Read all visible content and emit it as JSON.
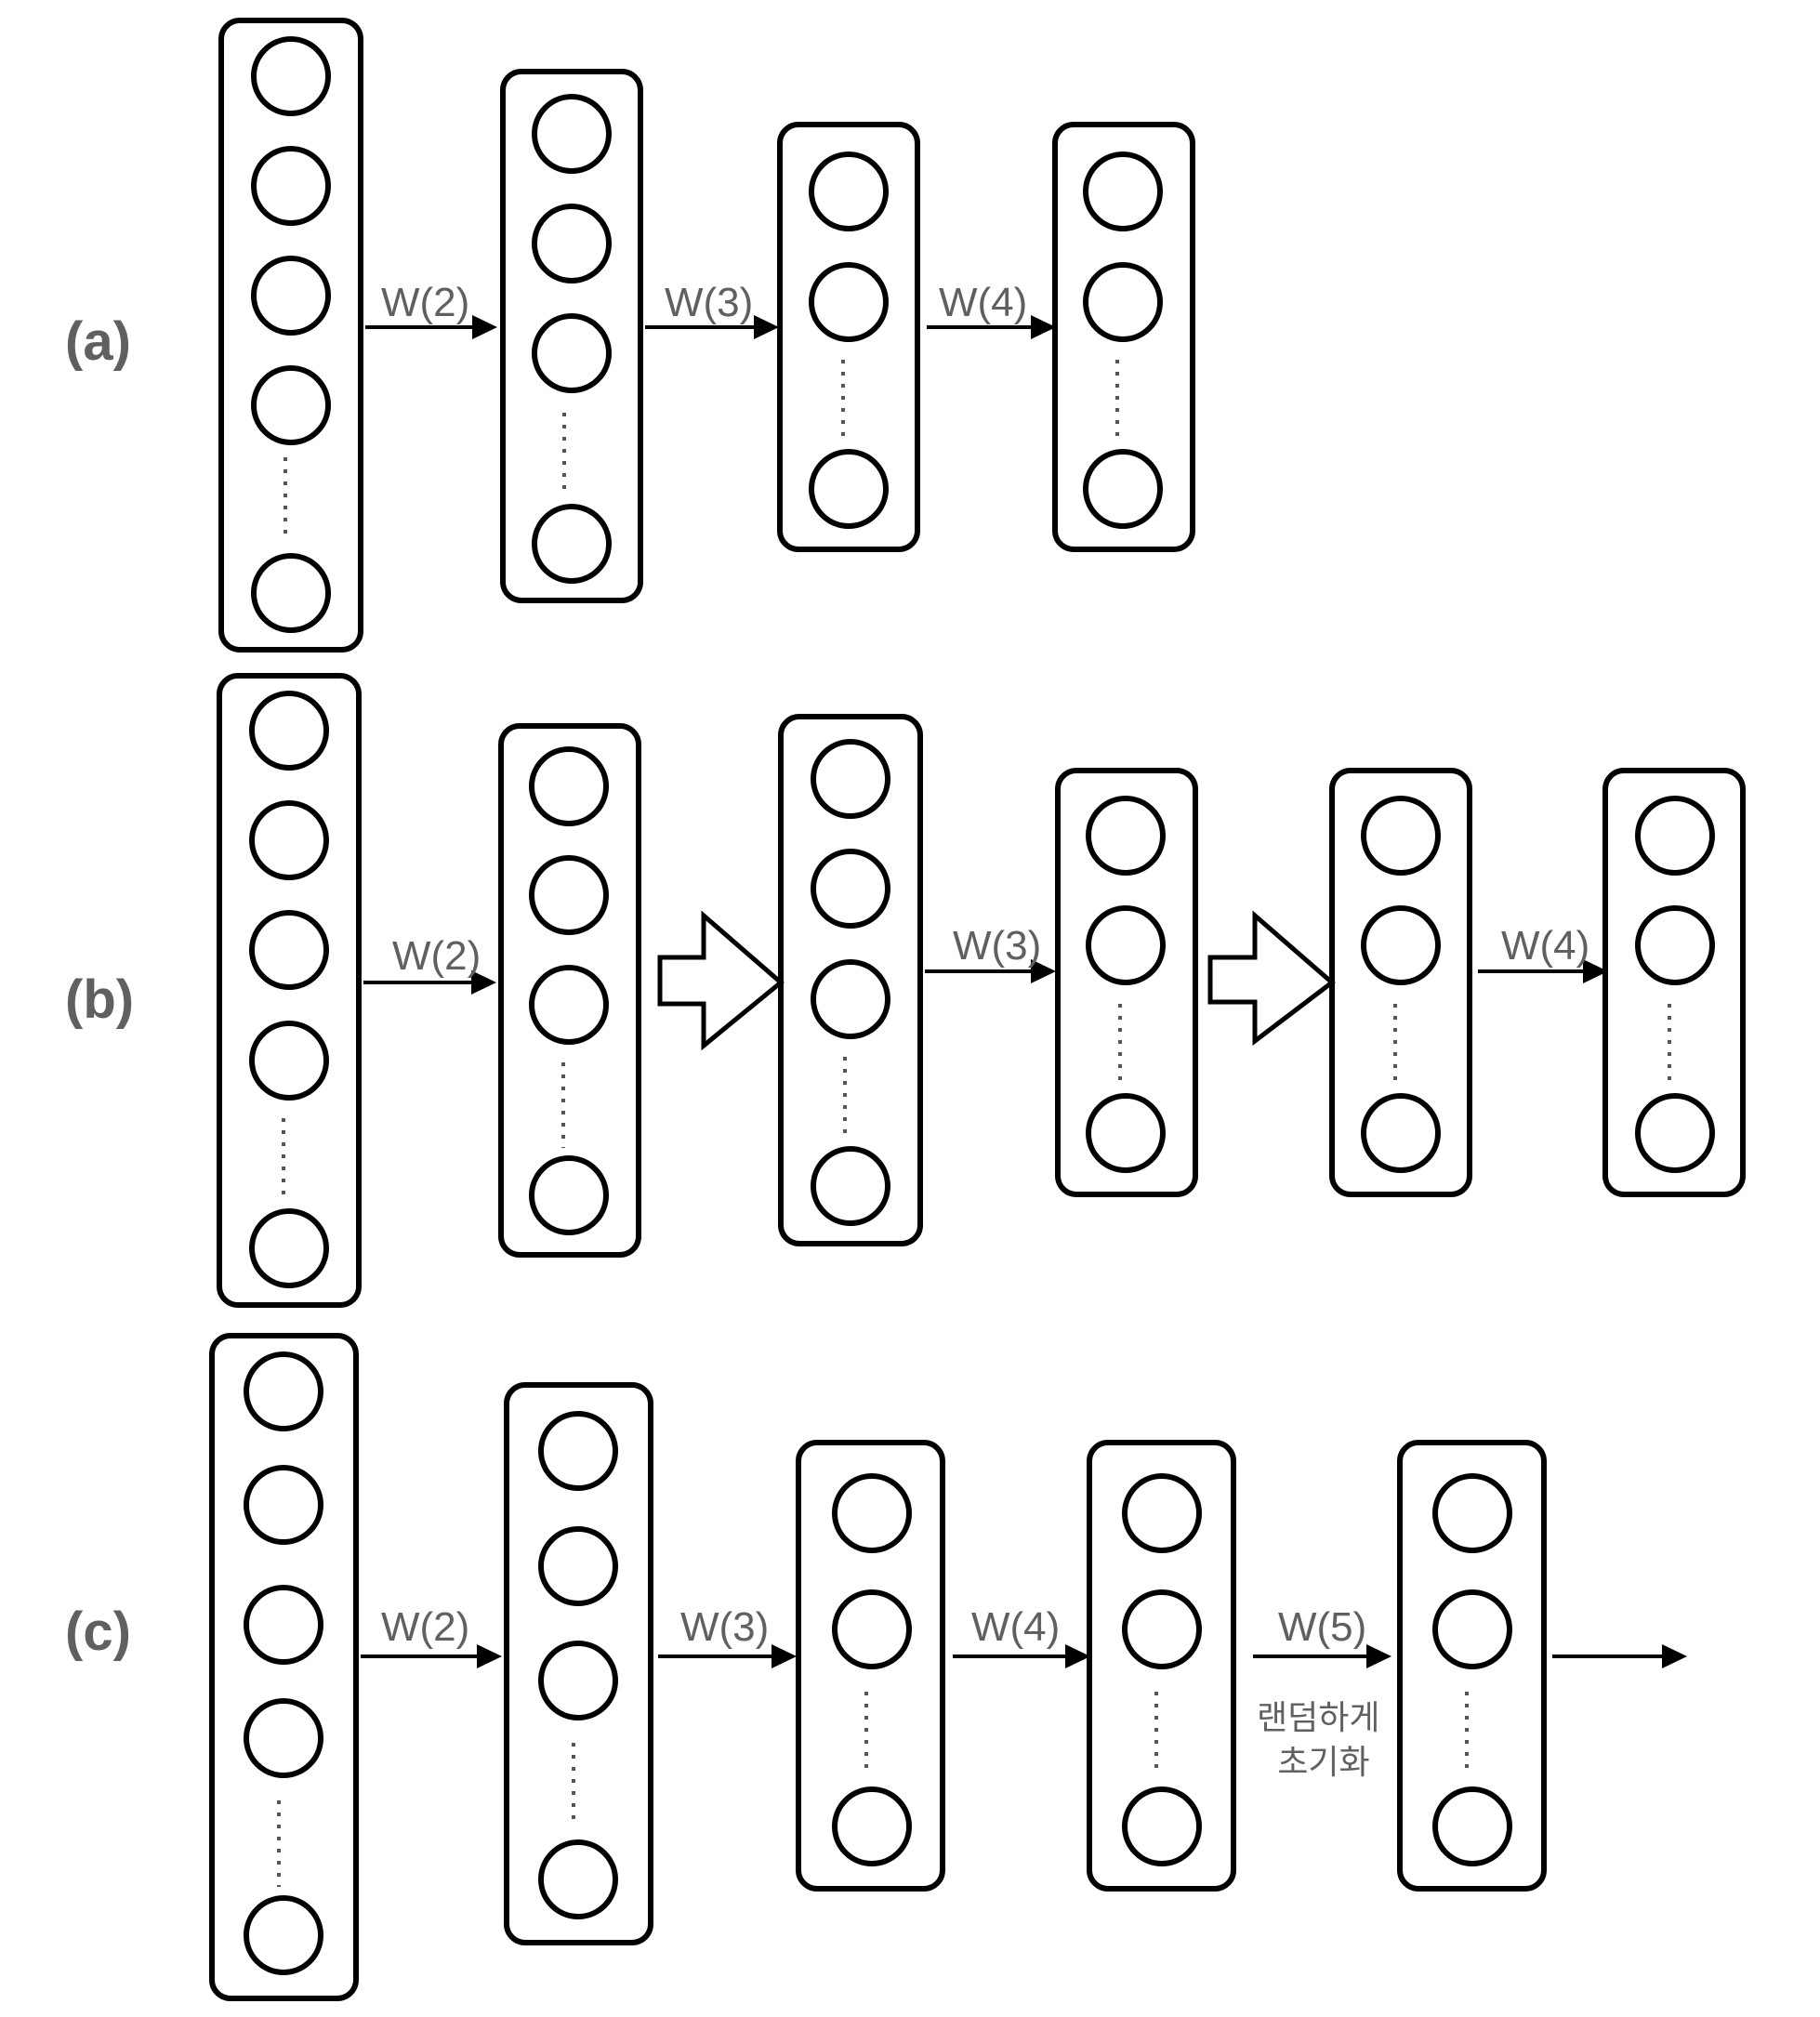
{
  "rows": [
    {
      "label": "(a)",
      "weights": [
        "W(2)",
        "W(3)",
        "W(4)"
      ],
      "note": ""
    },
    {
      "label": "(b)",
      "weights": [
        "W(2)",
        "W(3)",
        "W(4)"
      ],
      "note": ""
    },
    {
      "label": "(c)",
      "weights": [
        "W(2)",
        "W(3)",
        "W(4)",
        "W(5)"
      ],
      "note_lines": [
        "랜덤하게",
        "초기화"
      ]
    }
  ]
}
